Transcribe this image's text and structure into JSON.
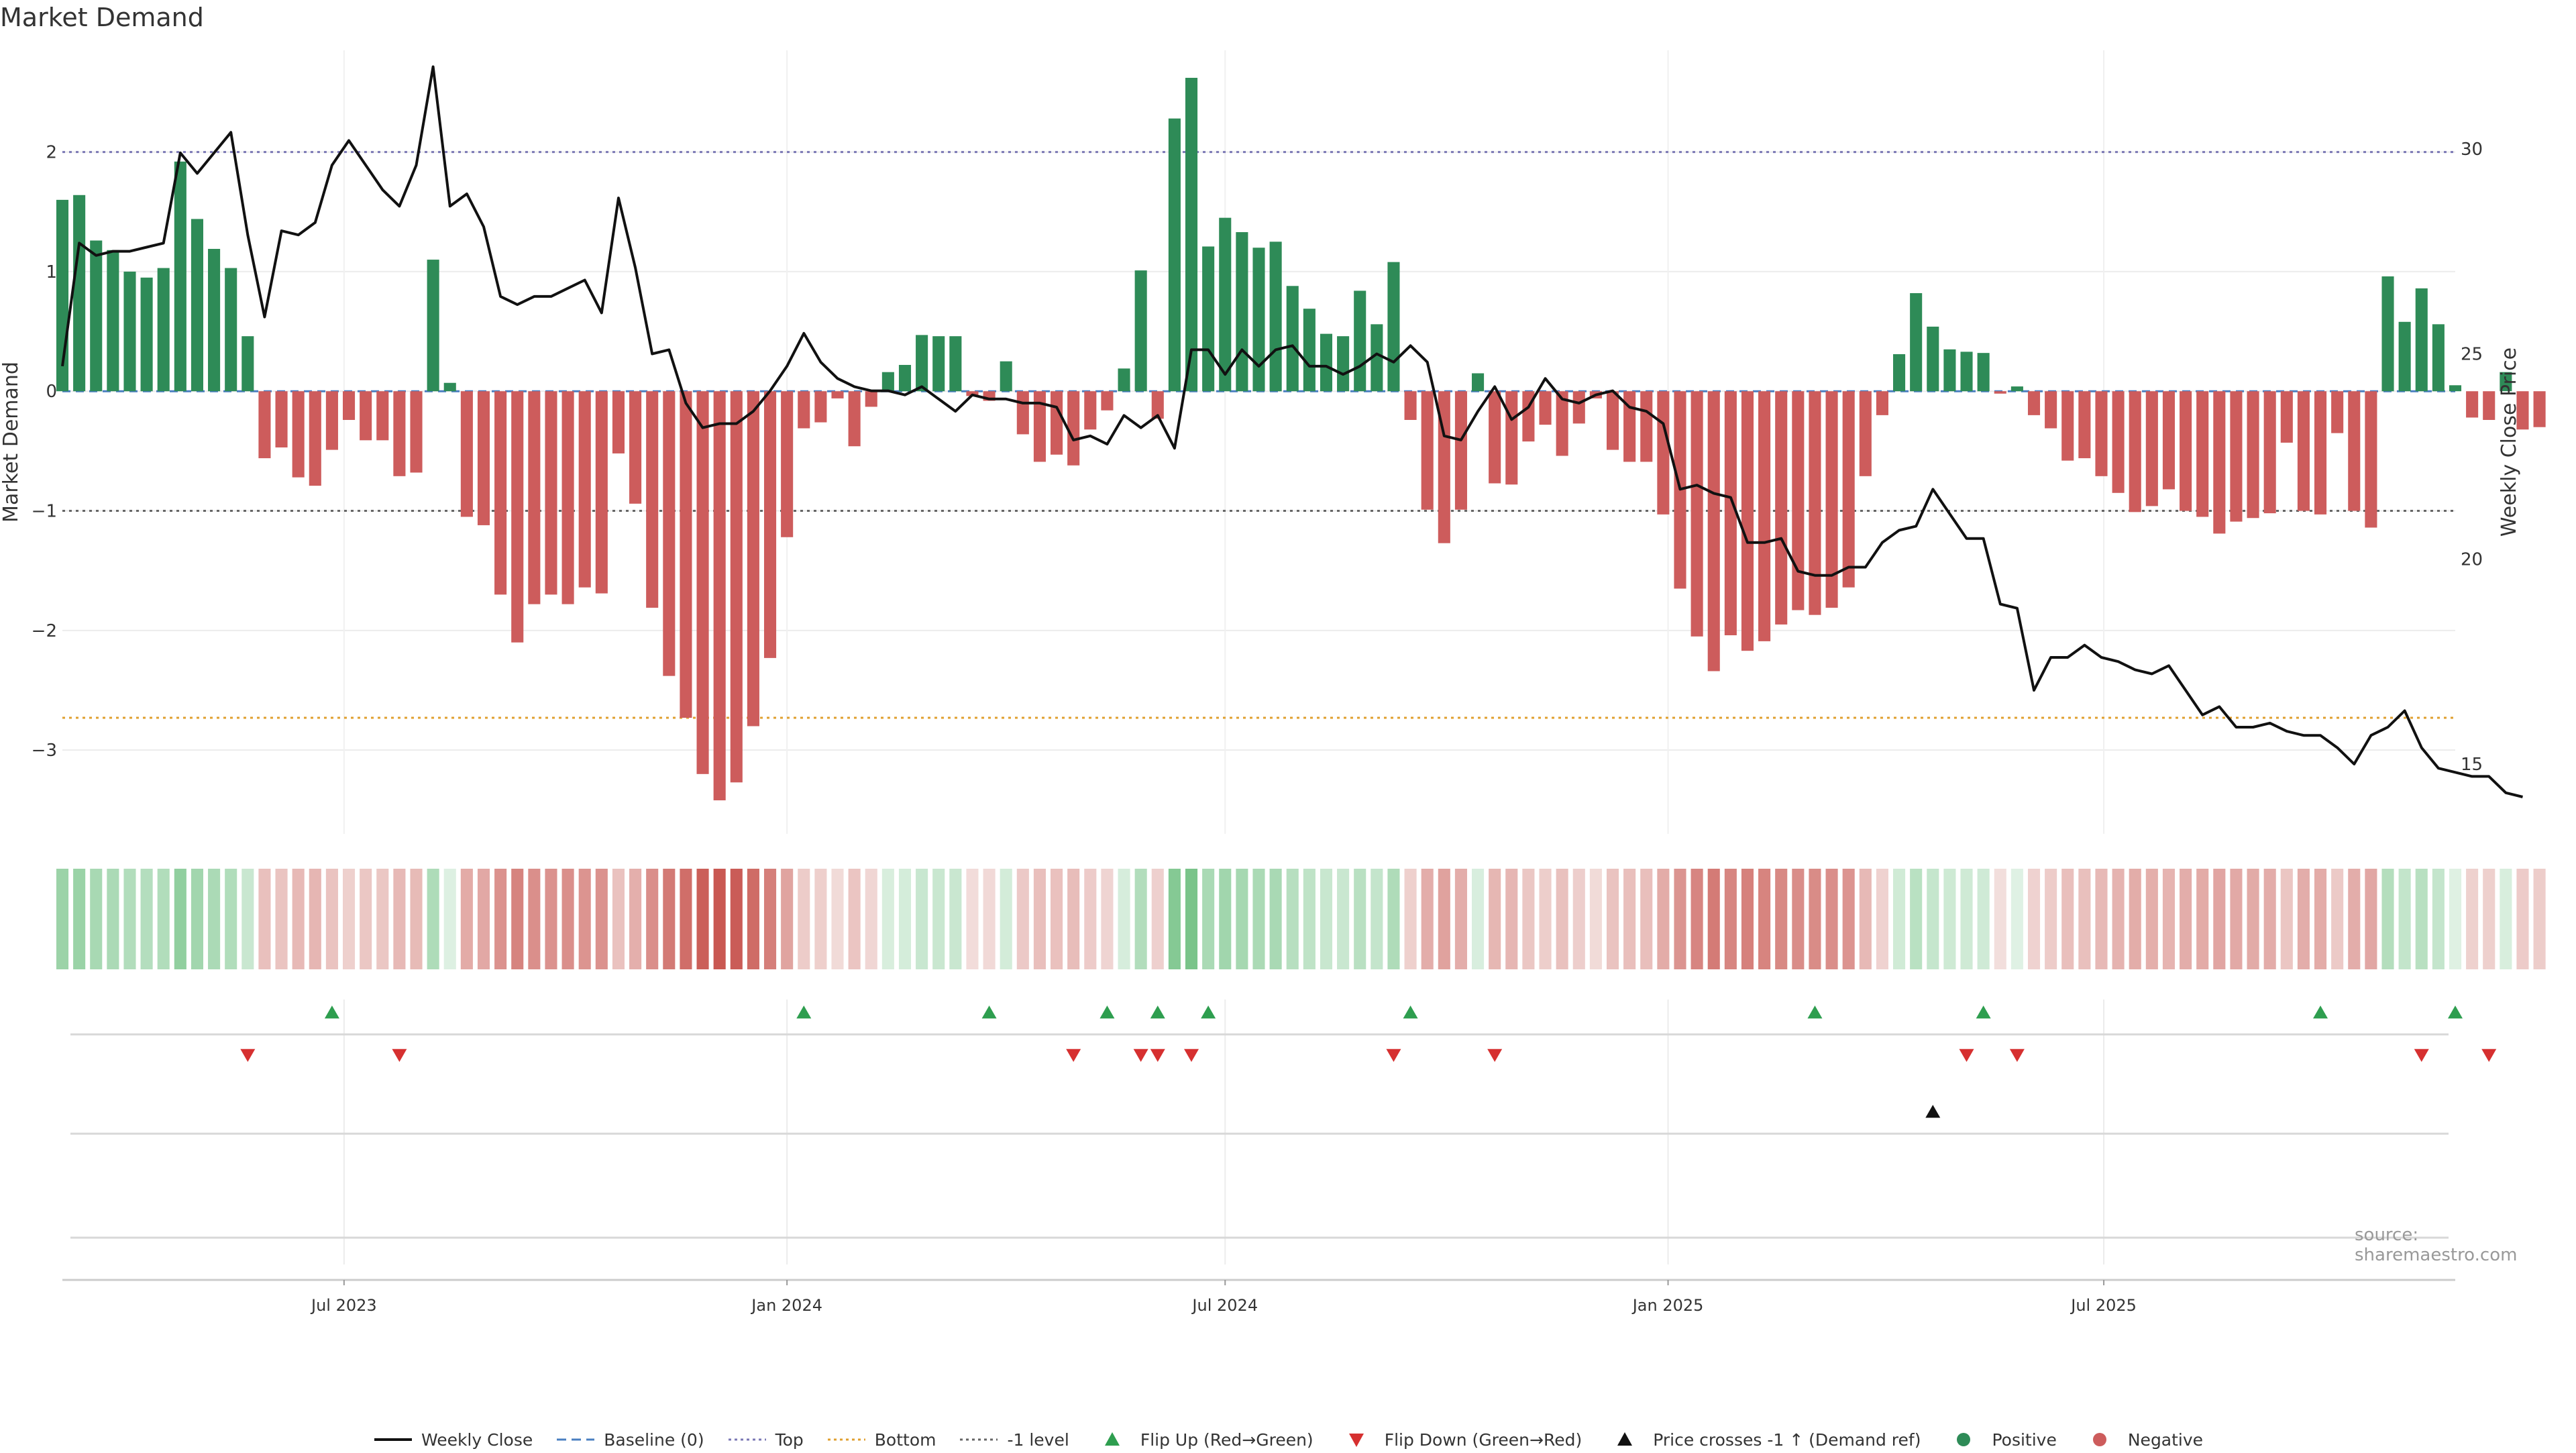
{
  "title": "Market Demand",
  "source": "source: sharemaestro.com",
  "colors": {
    "positive": "#2e8b57",
    "negative": "#cd5c5c",
    "top": "#7b78b5",
    "bottom": "#e0a030",
    "minus1": "#666666",
    "baseline": "#4a7fc1",
    "price": "#111111",
    "flip_up": "#2e9e4f",
    "flip_down": "#d63030",
    "cross": "#111111"
  },
  "legend": [
    {
      "key": "weekly_close",
      "label": "Weekly Close",
      "icon": "solid-line"
    },
    {
      "key": "baseline",
      "label": "Baseline (0)",
      "icon": "dashed-line"
    },
    {
      "key": "top",
      "label": "Top",
      "icon": "dotted-line"
    },
    {
      "key": "bottom",
      "label": "Bottom",
      "icon": "dotted-line"
    },
    {
      "key": "minus1",
      "label": "-1 level",
      "icon": "dotted-line"
    },
    {
      "key": "flip_up",
      "label": "Flip Up (Red→Green)",
      "icon": "triangle-up"
    },
    {
      "key": "flip_down",
      "label": "Flip Down (Green→Red)",
      "icon": "triangle-down"
    },
    {
      "key": "cross",
      "label": "Price crosses -1 ↑ (Demand ref)",
      "icon": "triangle-up"
    },
    {
      "key": "positive",
      "label": "Positive",
      "icon": "circle"
    },
    {
      "key": "negative",
      "label": "Negative",
      "icon": "circle"
    }
  ],
  "chart_data": {
    "type": "bar",
    "ylabel": "Market Demand",
    "y2label": "Weekly Close Price",
    "ylim": [
      -3.7,
      2.85
    ],
    "y2lim": [
      13.3,
      32.4
    ],
    "yticks": [
      -3,
      -2,
      -1,
      0,
      1,
      2
    ],
    "ytick_labels": [
      "−3",
      "−2",
      "−1",
      "0",
      "1",
      "2"
    ],
    "y2ticks": [
      15,
      20,
      25,
      30
    ],
    "y2tick_labels": [
      "15",
      "20",
      "25",
      "30"
    ],
    "xlim": [
      "2023-03-06",
      "2025-11-24"
    ],
    "xticks": [
      {
        "label": "Jul 2023",
        "date": "2023-07-01"
      },
      {
        "label": "Jan 2024",
        "date": "2024-01-01"
      },
      {
        "label": "Jul 2024",
        "date": "2024-07-01"
      },
      {
        "label": "Jan 2025",
        "date": "2025-01-01"
      },
      {
        "label": "Jul 2025",
        "date": "2025-07-01"
      }
    ],
    "reference_lines": [
      {
        "name": "Top",
        "y": 2.0
      },
      {
        "name": "Bottom",
        "y": -2.73
      },
      {
        "name": "-1 level",
        "y": -1.0
      },
      {
        "name": "Baseline (0)",
        "y": 0
      }
    ],
    "start_date": "2023-03-06",
    "interval_days": 7,
    "demand": [
      1.6,
      1.64,
      1.26,
      1.18,
      1.0,
      0.95,
      1.03,
      1.92,
      1.44,
      1.19,
      1.03,
      0.46,
      -0.56,
      -0.47,
      -0.72,
      -0.79,
      -0.49,
      -0.24,
      -0.41,
      -0.41,
      -0.71,
      -0.68,
      1.1,
      0.07,
      -1.05,
      -1.12,
      -1.7,
      -2.1,
      -1.78,
      -1.7,
      -1.78,
      -1.64,
      -1.69,
      -0.52,
      -0.94,
      -1.81,
      -2.38,
      -2.73,
      -3.2,
      -3.42,
      -3.27,
      -2.8,
      -2.23,
      -1.22,
      -0.31,
      -0.26,
      -0.06,
      -0.46,
      -0.13,
      0.16,
      0.22,
      0.47,
      0.46,
      0.46,
      -0.04,
      -0.08,
      0.25,
      -0.36,
      -0.59,
      -0.53,
      -0.62,
      -0.32,
      -0.16,
      0.19,
      1.01,
      -0.23,
      2.28,
      2.62,
      1.21,
      1.45,
      1.33,
      1.2,
      1.25,
      0.88,
      0.69,
      0.48,
      0.46,
      0.84,
      0.56,
      1.08,
      -0.24,
      -0.99,
      -1.27,
      -0.99,
      0.15,
      -0.77,
      -0.78,
      -0.42,
      -0.28,
      -0.54,
      -0.27,
      -0.06,
      -0.49,
      -0.59,
      -0.59,
      -1.03,
      -1.65,
      -2.05,
      -2.34,
      -2.04,
      -2.17,
      -2.09,
      -1.95,
      -1.83,
      -1.87,
      -1.81,
      -1.64,
      -0.71,
      -0.2,
      0.31,
      0.82,
      0.54,
      0.35,
      0.33,
      0.32,
      -0.02,
      0.04,
      -0.2,
      -0.31,
      -0.58,
      -0.56,
      -0.71,
      -0.85,
      -1.01,
      -0.96,
      -0.82,
      -1.0,
      -1.05,
      -1.19,
      -1.09,
      -1.06,
      -1.02,
      -0.43,
      -1.0,
      -1.03,
      -0.35,
      -1.0,
      -1.14,
      0.96,
      0.58,
      0.86,
      0.56,
      0.05,
      -0.22,
      -0.24,
      0.16,
      -0.32,
      -0.3
    ],
    "price_start_date": "2023-03-06",
    "price": [
      24.7,
      27.7,
      27.4,
      27.5,
      27.5,
      27.6,
      27.7,
      29.9,
      29.4,
      29.9,
      30.4,
      27.9,
      25.9,
      28.0,
      27.9,
      28.2,
      29.6,
      30.2,
      29.6,
      29.0,
      28.6,
      29.6,
      32.0,
      28.6,
      28.9,
      28.1,
      26.4,
      26.2,
      26.4,
      26.4,
      26.6,
      26.8,
      26.0,
      28.8,
      27.1,
      25.0,
      25.1,
      23.8,
      23.2,
      23.3,
      23.3,
      23.6,
      24.1,
      24.7,
      25.5,
      24.8,
      24.4,
      24.2,
      24.1,
      24.1,
      24.0,
      24.2,
      23.9,
      23.6,
      24.0,
      23.9,
      23.9,
      23.8,
      23.8,
      23.7,
      22.9,
      23.0,
      22.8,
      23.5,
      23.2,
      23.5,
      22.7,
      25.1,
      25.1,
      24.5,
      25.1,
      24.7,
      25.1,
      25.2,
      24.7,
      24.7,
      24.5,
      24.7,
      25.0,
      24.8,
      25.2,
      24.8,
      23.0,
      22.9,
      23.6,
      24.2,
      23.4,
      23.7,
      24.4,
      23.9,
      23.8,
      24.0,
      24.1,
      23.7,
      23.6,
      23.3,
      21.7,
      21.8,
      21.6,
      21.5,
      20.4,
      20.4,
      20.5,
      19.7,
      19.6,
      19.6,
      19.8,
      19.8,
      20.4,
      20.7,
      20.8,
      21.7,
      21.1,
      20.5,
      20.5,
      18.9,
      18.8,
      16.8,
      17.6,
      17.6,
      17.9,
      17.6,
      17.5,
      17.3,
      17.2,
      17.4,
      16.8,
      16.2,
      16.4,
      15.9,
      15.9,
      16.0,
      15.8,
      15.7,
      15.7,
      15.4,
      15.0,
      15.7,
      15.9,
      16.3,
      15.4,
      14.9,
      14.8,
      14.7,
      14.7,
      14.3,
      14.2
    ],
    "flip_up_dates": [
      "2023-06-26",
      "2024-01-08",
      "2024-03-25",
      "2024-05-13",
      "2024-06-03",
      "2024-06-24",
      "2024-09-16",
      "2025-03-03",
      "2025-05-12",
      "2025-09-29",
      "2025-11-24"
    ],
    "flip_down_dates": [
      "2023-05-22",
      "2023-07-24",
      "2024-04-29",
      "2024-05-27",
      "2024-06-03",
      "2024-06-17",
      "2024-09-09",
      "2024-10-21",
      "2025-05-05",
      "2025-05-26",
      "2025-11-10",
      "2025-12-08"
    ],
    "price_cross_dates": [
      "2025-04-21"
    ]
  }
}
